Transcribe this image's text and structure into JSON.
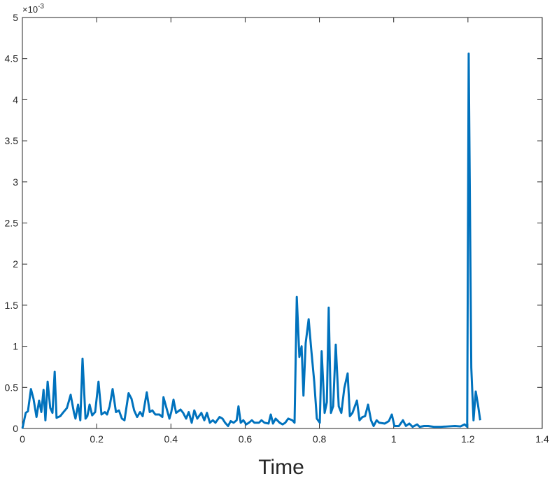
{
  "chart_data": {
    "type": "line",
    "x_label": "Time",
    "y_multiplier": "×10",
    "y_exponent": "-3",
    "xlim": [
      0,
      1.4
    ],
    "xticks": [
      0,
      0.2,
      0.4,
      0.6,
      0.8,
      1,
      1.2,
      1.4
    ],
    "ylim": [
      0,
      5
    ],
    "yticks": [
      0,
      0.5,
      1,
      1.5,
      2,
      2.5,
      3,
      3.5,
      4,
      4.5,
      5
    ],
    "grid": false,
    "series": [
      {
        "color": "#0072bd",
        "x": [
          0,
          0.009,
          0.015,
          0.023,
          0.03,
          0.038,
          0.045,
          0.051,
          0.057,
          0.062,
          0.068,
          0.075,
          0.081,
          0.087,
          0.092,
          0.102,
          0.109,
          0.12,
          0.13,
          0.139,
          0.143,
          0.15,
          0.156,
          0.162,
          0.17,
          0.175,
          0.181,
          0.188,
          0.196,
          0.205,
          0.213,
          0.222,
          0.228,
          0.235,
          0.243,
          0.252,
          0.26,
          0.268,
          0.275,
          0.286,
          0.294,
          0.301,
          0.309,
          0.317,
          0.324,
          0.335,
          0.343,
          0.35,
          0.358,
          0.369,
          0.377,
          0.38,
          0.388,
          0.396,
          0.401,
          0.407,
          0.414,
          0.426,
          0.433,
          0.441,
          0.448,
          0.456,
          0.463,
          0.471,
          0.482,
          0.49,
          0.497,
          0.505,
          0.513,
          0.52,
          0.531,
          0.539,
          0.546,
          0.554,
          0.561,
          0.569,
          0.577,
          0.582,
          0.588,
          0.595,
          0.603,
          0.61,
          0.618,
          0.625,
          0.637,
          0.644,
          0.652,
          0.663,
          0.669,
          0.675,
          0.682,
          0.693,
          0.701,
          0.708,
          0.716,
          0.727,
          0.733,
          0.739,
          0.746,
          0.752,
          0.757,
          0.763,
          0.771,
          0.778,
          0.786,
          0.793,
          0.801,
          0.806,
          0.814,
          0.82,
          0.825,
          0.831,
          0.837,
          0.844,
          0.852,
          0.859,
          0.867,
          0.876,
          0.882,
          0.889,
          0.901,
          0.908,
          0.916,
          0.923,
          0.931,
          0.939,
          0.946,
          0.954,
          0.961,
          0.976,
          0.987,
          0.995,
          1.002,
          1.014,
          1.025,
          1.033,
          1.042,
          1.051,
          1.063,
          1.07,
          1.082,
          1.093,
          1.108,
          1.127,
          1.146,
          1.165,
          1.18,
          1.191,
          1.198,
          1.202,
          1.209,
          1.215,
          1.221,
          1.227,
          1.233
        ],
        "values": [
          0,
          0.19,
          0.21,
          0.48,
          0.36,
          0.14,
          0.34,
          0.2,
          0.47,
          0.1,
          0.57,
          0.25,
          0.19,
          0.69,
          0.13,
          0.15,
          0.19,
          0.25,
          0.41,
          0.19,
          0.12,
          0.29,
          0.1,
          0.85,
          0.12,
          0.15,
          0.29,
          0.16,
          0.2,
          0.57,
          0.17,
          0.2,
          0.17,
          0.27,
          0.48,
          0.2,
          0.22,
          0.12,
          0.1,
          0.43,
          0.36,
          0.22,
          0.14,
          0.2,
          0.15,
          0.44,
          0.2,
          0.22,
          0.17,
          0.17,
          0.14,
          0.38,
          0.25,
          0.12,
          0.2,
          0.35,
          0.19,
          0.23,
          0.19,
          0.12,
          0.2,
          0.07,
          0.22,
          0.12,
          0.19,
          0.1,
          0.19,
          0.07,
          0.1,
          0.07,
          0.14,
          0.12,
          0.07,
          0.03,
          0.09,
          0.07,
          0.1,
          0.27,
          0.07,
          0.1,
          0.05,
          0.07,
          0.1,
          0.07,
          0.07,
          0.1,
          0.07,
          0.06,
          0.17,
          0.06,
          0.12,
          0.07,
          0.05,
          0.07,
          0.12,
          0.1,
          0.07,
          1.6,
          0.87,
          1.0,
          0.4,
          1.04,
          1.33,
          0.96,
          0.57,
          0.12,
          0.07,
          0.94,
          0.19,
          0.32,
          1.47,
          0.19,
          0.27,
          1.02,
          0.27,
          0.19,
          0.49,
          0.67,
          0.15,
          0.19,
          0.34,
          0.1,
          0.14,
          0.15,
          0.29,
          0.1,
          0.03,
          0.1,
          0.07,
          0.06,
          0.09,
          0.17,
          0.03,
          0.03,
          0.1,
          0.03,
          0.06,
          0.02,
          0.05,
          0.02,
          0.03,
          0.03,
          0.02,
          0.02,
          0.025,
          0.03,
          0.025,
          0.05,
          0.02,
          4.56,
          0.74,
          0.1,
          0.45,
          0.29,
          0.1
        ]
      }
    ]
  }
}
